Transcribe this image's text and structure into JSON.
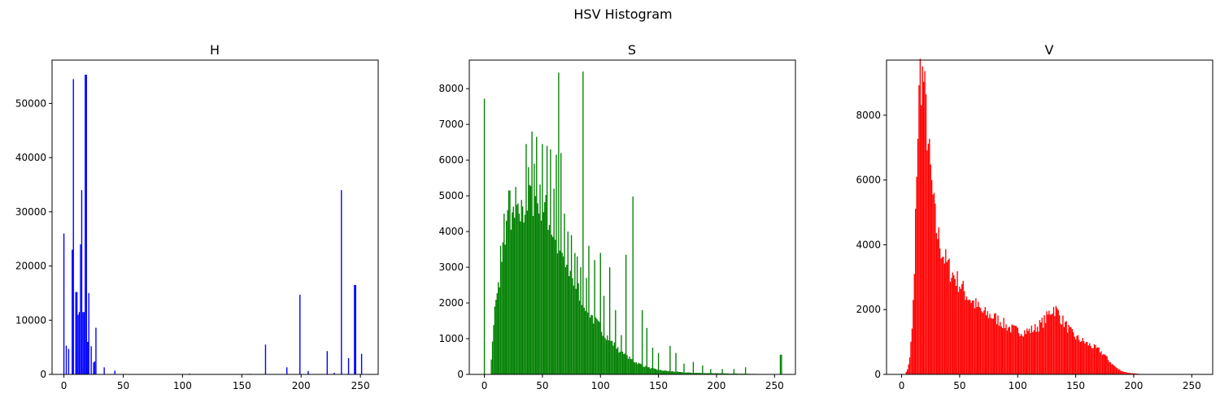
{
  "figure": {
    "title": "HSV Histogram"
  },
  "chart_data": [
    {
      "type": "bar",
      "title": "H",
      "color": "#0000ff",
      "xlim": [
        -10,
        265
      ],
      "ylim": [
        0,
        58000
      ],
      "xticks": [
        0,
        50,
        100,
        150,
        200,
        250
      ],
      "yticks": [
        0,
        10000,
        20000,
        30000,
        40000,
        50000
      ],
      "bins": [
        [
          0,
          26000
        ],
        [
          2,
          5300
        ],
        [
          4,
          4700
        ],
        [
          7,
          23000
        ],
        [
          8,
          54500
        ],
        [
          10,
          15200
        ],
        [
          11,
          15200
        ],
        [
          12,
          11000
        ],
        [
          13,
          11500
        ],
        [
          14,
          24000
        ],
        [
          15,
          34000
        ],
        [
          16,
          11500
        ],
        [
          17,
          11500
        ],
        [
          18,
          55300
        ],
        [
          19,
          55300
        ],
        [
          20,
          6000
        ],
        [
          21,
          15000
        ],
        [
          23,
          5200
        ],
        [
          25,
          2200
        ],
        [
          26,
          2400
        ],
        [
          27,
          8600
        ],
        [
          34,
          1300
        ],
        [
          43,
          700
        ],
        [
          106,
          150
        ],
        [
          157,
          100
        ],
        [
          170,
          5500
        ],
        [
          188,
          1300
        ],
        [
          199,
          14700
        ],
        [
          206,
          600
        ],
        [
          222,
          4300
        ],
        [
          228,
          300
        ],
        [
          234,
          34000
        ],
        [
          240,
          3000
        ],
        [
          245,
          16500
        ],
        [
          246,
          16500
        ],
        [
          251,
          3800
        ]
      ]
    },
    {
      "type": "bar",
      "title": "S",
      "color": "#008000",
      "xlim": [
        -13,
        268
      ],
      "ylim": [
        0,
        8800
      ],
      "xticks": [
        0,
        50,
        100,
        150,
        200,
        250
      ],
      "yticks": [
        0,
        1000,
        2000,
        3000,
        4000,
        5000,
        6000,
        7000,
        8000
      ],
      "anchors": [
        [
          0,
          0
        ],
        [
          5,
          0
        ],
        [
          8,
          1300
        ],
        [
          10,
          2000
        ],
        [
          15,
          3000
        ],
        [
          20,
          3800
        ],
        [
          25,
          4200
        ],
        [
          30,
          4400
        ],
        [
          35,
          4700
        ],
        [
          40,
          5000
        ],
        [
          45,
          4900
        ],
        [
          50,
          4800
        ],
        [
          55,
          4400
        ],
        [
          60,
          3800
        ],
        [
          65,
          3500
        ],
        [
          70,
          3000
        ],
        [
          75,
          2700
        ],
        [
          80,
          2400
        ],
        [
          85,
          2100
        ],
        [
          90,
          1800
        ],
        [
          95,
          1500
        ],
        [
          100,
          1300
        ],
        [
          105,
          1100
        ],
        [
          110,
          900
        ],
        [
          115,
          700
        ],
        [
          120,
          550
        ],
        [
          125,
          450
        ],
        [
          130,
          350
        ],
        [
          140,
          200
        ],
        [
          150,
          120
        ],
        [
          160,
          90
        ],
        [
          170,
          60
        ],
        [
          180,
          45
        ],
        [
          200,
          30
        ],
        [
          220,
          20
        ],
        [
          240,
          10
        ],
        [
          255,
          0
        ]
      ],
      "spikes": [
        [
          0,
          7720
        ],
        [
          9,
          1900
        ],
        [
          12,
          2400
        ],
        [
          14,
          3600
        ],
        [
          16,
          3700
        ],
        [
          17,
          4500
        ],
        [
          19,
          4300
        ],
        [
          20,
          4600
        ],
        [
          21,
          5150
        ],
        [
          22,
          5150
        ],
        [
          25,
          4700
        ],
        [
          26,
          4200
        ],
        [
          27,
          5250
        ],
        [
          30,
          4500
        ],
        [
          33,
          4700
        ],
        [
          35,
          3600
        ],
        [
          36,
          6450
        ],
        [
          38,
          5800
        ],
        [
          39,
          5300
        ],
        [
          41,
          6800
        ],
        [
          43,
          5900
        ],
        [
          45,
          6650
        ],
        [
          48,
          5300
        ],
        [
          50,
          6450
        ],
        [
          52,
          4700
        ],
        [
          54,
          6400
        ],
        [
          57,
          6300
        ],
        [
          60,
          5200
        ],
        [
          62,
          6150
        ],
        [
          64,
          8450
        ],
        [
          66,
          6200
        ],
        [
          69,
          4500
        ],
        [
          72,
          4000
        ],
        [
          75,
          3900
        ],
        [
          78,
          3400
        ],
        [
          80,
          3300
        ],
        [
          83,
          3000
        ],
        [
          85,
          8480
        ],
        [
          88,
          2700
        ],
        [
          90,
          3600
        ],
        [
          95,
          3200
        ],
        [
          100,
          3400
        ],
        [
          103,
          2200
        ],
        [
          108,
          3000
        ],
        [
          113,
          1800
        ],
        [
          118,
          1100
        ],
        [
          122,
          3350
        ],
        [
          128,
          4980
        ],
        [
          136,
          1800
        ],
        [
          140,
          1300
        ],
        [
          145,
          750
        ],
        [
          150,
          600
        ],
        [
          160,
          800
        ],
        [
          165,
          600
        ],
        [
          172,
          300
        ],
        [
          180,
          350
        ],
        [
          188,
          250
        ],
        [
          195,
          150
        ],
        [
          205,
          150
        ],
        [
          215,
          150
        ],
        [
          225,
          200
        ],
        [
          255,
          550
        ],
        [
          256,
          550
        ]
      ]
    },
    {
      "type": "bar",
      "title": "V",
      "color": "#ff0000",
      "xlim": [
        -13,
        268
      ],
      "ylim": [
        0,
        9700
      ],
      "xticks": [
        0,
        50,
        100,
        150,
        200,
        250
      ],
      "yticks": [
        0,
        2000,
        4000,
        6000,
        8000
      ],
      "anchors": [
        [
          0,
          0
        ],
        [
          3,
          0
        ],
        [
          5,
          150
        ],
        [
          7,
          500
        ],
        [
          9,
          1400
        ],
        [
          11,
          3000
        ],
        [
          13,
          6500
        ],
        [
          15,
          8500
        ],
        [
          16,
          9300
        ],
        [
          17,
          9300
        ],
        [
          18,
          9100
        ],
        [
          19,
          9100
        ],
        [
          20,
          8500
        ],
        [
          22,
          7600
        ],
        [
          24,
          6600
        ],
        [
          26,
          5800
        ],
        [
          28,
          5100
        ],
        [
          30,
          4500
        ],
        [
          34,
          3900
        ],
        [
          38,
          3500
        ],
        [
          42,
          3200
        ],
        [
          46,
          3000
        ],
        [
          50,
          2800
        ],
        [
          55,
          2500
        ],
        [
          60,
          2300
        ],
        [
          65,
          2100
        ],
        [
          70,
          1900
        ],
        [
          75,
          1850
        ],
        [
          80,
          1750
        ],
        [
          85,
          1650
        ],
        [
          90,
          1500
        ],
        [
          95,
          1400
        ],
        [
          100,
          1350
        ],
        [
          105,
          1320
        ],
        [
          110,
          1350
        ],
        [
          115,
          1420
        ],
        [
          120,
          1550
        ],
        [
          125,
          1750
        ],
        [
          128,
          1950
        ],
        [
          131,
          2050
        ],
        [
          134,
          1950
        ],
        [
          138,
          1700
        ],
        [
          142,
          1500
        ],
        [
          146,
          1300
        ],
        [
          150,
          1150
        ],
        [
          155,
          1050
        ],
        [
          160,
          950
        ],
        [
          165,
          850
        ],
        [
          170,
          750
        ],
        [
          175,
          600
        ],
        [
          178,
          450
        ],
        [
          182,
          300
        ],
        [
          186,
          180
        ],
        [
          190,
          100
        ],
        [
          195,
          50
        ],
        [
          200,
          30
        ],
        [
          205,
          15
        ],
        [
          210,
          8
        ],
        [
          220,
          4
        ],
        [
          235,
          2
        ],
        [
          255,
          0
        ]
      ]
    }
  ]
}
